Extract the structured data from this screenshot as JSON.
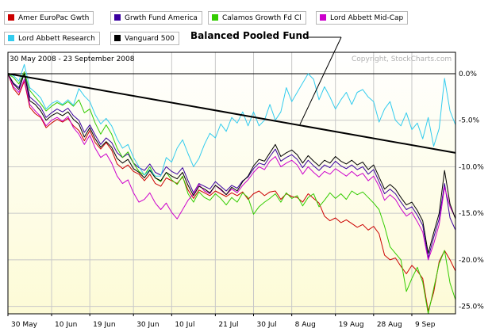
{
  "chart_data": {
    "type": "line",
    "title": "",
    "date_range": "30 May 2008 - 23 September 2008",
    "copyright": "Copyright, StockCharts.com",
    "annotation": "Balanced Pooled Fund",
    "x_tick_labels": [
      "30 May",
      "10 Jun",
      "19 Jun",
      "30 Jun",
      "10 Jul",
      "21 Jul",
      "30 Jul",
      "8 Aug",
      "19 Aug",
      "28 Aug",
      "9 Sep"
    ],
    "y_tick_labels": [
      "0.0%",
      "-5.0%",
      "-10.0%",
      "-15.0%",
      "-20.0%",
      "-25.0%"
    ],
    "y_ticks": [
      0,
      -5,
      -10,
      -15,
      -20,
      -25
    ],
    "ylim": [
      -25.8,
      2.3
    ],
    "x_count": 83,
    "grid": true,
    "legend_position": "top-left",
    "colors": {
      "background_top": "#ffffff",
      "background_bottom": "#fdfbd6",
      "grid": "#c8c8c8",
      "axis": "#000000"
    },
    "trend_line": {
      "start": [
        0,
        0
      ],
      "end": [
        82,
        -8.5
      ]
    },
    "series": [
      {
        "name": "Amer EuroPac Gwth",
        "color": "#cc0000",
        "values": [
          0,
          -1.6,
          -2.3,
          -0.8,
          -3.6,
          -4.3,
          -4.7,
          -5.8,
          -5.3,
          -4.9,
          -5.2,
          -4.8,
          -5.6,
          -6.1,
          -7.2,
          -6.1,
          -7.4,
          -8.1,
          -7.4,
          -8.2,
          -9.7,
          -10.2,
          -9.8,
          -10.5,
          -10.8,
          -11.5,
          -10.8,
          -11.8,
          -12.1,
          -11.2,
          -11.5,
          -11.8,
          -11.1,
          -12.5,
          -13.4,
          -12.5,
          -12.8,
          -13.1,
          -12.6,
          -12.9,
          -13.2,
          -12.8,
          -13.1,
          -12.7,
          -13.5,
          -12.9,
          -12.6,
          -13.1,
          -12.7,
          -12.6,
          -13.5,
          -12.9,
          -13.2,
          -13.3,
          -13.8,
          -12.9,
          -13.4,
          -13.9,
          -15.3,
          -15.8,
          -15.5,
          -16.0,
          -15.7,
          -16.1,
          -16.5,
          -16.2,
          -16.8,
          -16.4,
          -17.2,
          -19.5,
          -20.0,
          -19.8,
          -20.7,
          -21.5,
          -20.6,
          -21.2,
          -22.0,
          -25.5,
          -23.5,
          -20.2,
          -19.0,
          -20.0,
          -21.2
        ]
      },
      {
        "name": "Grwth Fund America",
        "color": "#3a00a0",
        "values": [
          0,
          -1.0,
          -1.5,
          0.2,
          -2.5,
          -3.0,
          -3.6,
          -4.7,
          -4.2,
          -3.8,
          -4.1,
          -3.7,
          -4.5,
          -5.0,
          -6.3,
          -5.5,
          -6.6,
          -7.6,
          -6.9,
          -7.4,
          -8.5,
          -9.0,
          -8.6,
          -9.6,
          -10.1,
          -10.4,
          -9.7,
          -10.6,
          -10.9,
          -10.0,
          -10.5,
          -10.8,
          -10.1,
          -11.5,
          -12.8,
          -11.8,
          -12.1,
          -12.4,
          -11.6,
          -12.1,
          -12.6,
          -12.0,
          -12.3,
          -11.5,
          -11.1,
          -10.2,
          -9.6,
          -9.8,
          -8.9,
          -8.1,
          -9.4,
          -9.0,
          -8.7,
          -9.2,
          -10.1,
          -9.3,
          -9.9,
          -10.4,
          -9.8,
          -10.1,
          -9.4,
          -9.9,
          -10.2,
          -9.8,
          -10.3,
          -10.0,
          -10.8,
          -10.3,
          -11.6,
          -12.9,
          -12.4,
          -12.9,
          -13.8,
          -14.6,
          -14.3,
          -15.2,
          -16.3,
          -19.8,
          -17.6,
          -15.6,
          -11.8,
          -15.5,
          -16.8
        ]
      },
      {
        "name": "Calamos Growth Fd Cl",
        "color": "#33cc00",
        "values": [
          0,
          -0.4,
          -1.1,
          0.2,
          -1.8,
          -2.5,
          -3.2,
          -4.0,
          -3.5,
          -3.1,
          -3.4,
          -3.0,
          -3.5,
          -2.8,
          -4.2,
          -3.8,
          -5.3,
          -6.5,
          -5.5,
          -6.5,
          -8.0,
          -9.0,
          -8.4,
          -9.6,
          -10.5,
          -10.9,
          -10.0,
          -11.2,
          -11.6,
          -10.6,
          -11.4,
          -11.9,
          -11.0,
          -12.9,
          -13.8,
          -12.7,
          -13.3,
          -13.6,
          -12.9,
          -13.4,
          -14.1,
          -13.3,
          -13.8,
          -12.8,
          -13.3,
          -15.1,
          -14.3,
          -13.8,
          -13.4,
          -12.9,
          -13.8,
          -12.8,
          -13.4,
          -13.1,
          -14.2,
          -13.3,
          -12.9,
          -14.3,
          -13.6,
          -12.8,
          -13.4,
          -12.9,
          -13.5,
          -12.6,
          -13.0,
          -12.7,
          -13.3,
          -13.9,
          -14.6,
          -16.4,
          -18.6,
          -19.3,
          -20.0,
          -23.4,
          -22.0,
          -20.8,
          -22.4,
          -25.8,
          -23.1,
          -20.4,
          -19.0,
          -22.5,
          -24.3
        ]
      },
      {
        "name": "Lord Abbett Mid-Cap",
        "color": "#cc00cc",
        "values": [
          0,
          -1.4,
          -2.0,
          -0.6,
          -3.3,
          -4.0,
          -4.6,
          -5.6,
          -5.0,
          -4.7,
          -5.1,
          -4.6,
          -5.8,
          -6.5,
          -7.6,
          -6.6,
          -8.0,
          -9.0,
          -8.6,
          -9.6,
          -11.0,
          -11.8,
          -11.4,
          -12.8,
          -13.8,
          -13.5,
          -12.8,
          -13.9,
          -14.6,
          -13.9,
          -14.9,
          -15.6,
          -14.6,
          -13.6,
          -12.9,
          -11.9,
          -12.6,
          -12.9,
          -12.0,
          -12.5,
          -13.0,
          -12.4,
          -12.8,
          -12.0,
          -11.4,
          -10.6,
          -10.0,
          -10.3,
          -9.4,
          -8.9,
          -10.0,
          -9.6,
          -9.3,
          -9.8,
          -10.8,
          -10.0,
          -10.6,
          -11.1,
          -10.5,
          -10.8,
          -10.2,
          -10.6,
          -11.0,
          -10.5,
          -11.0,
          -10.7,
          -11.5,
          -11.0,
          -12.1,
          -13.6,
          -13.0,
          -13.5,
          -14.5,
          -15.3,
          -14.9,
          -15.9,
          -17.0,
          -20.0,
          -18.3,
          -16.2,
          -12.2,
          -14.3,
          -15.5
        ]
      },
      {
        "name": "Lord Abbett Research",
        "color": "#33ccee",
        "values": [
          0,
          -0.2,
          -0.8,
          1.0,
          -1.5,
          -2.0,
          -2.6,
          -3.8,
          -3.2,
          -2.9,
          -3.3,
          -2.8,
          -3.4,
          -1.6,
          -2.4,
          -3.0,
          -4.4,
          -5.4,
          -4.8,
          -5.6,
          -7.0,
          -8.0,
          -7.6,
          -9.0,
          -10.0,
          -10.9,
          -10.3,
          -11.0,
          -11.0,
          -9.0,
          -9.5,
          -8.0,
          -7.1,
          -8.6,
          -10.0,
          -9.1,
          -7.6,
          -6.4,
          -6.9,
          -5.4,
          -6.2,
          -4.7,
          -5.3,
          -4.1,
          -5.6,
          -4.1,
          -5.6,
          -5.0,
          -3.3,
          -5.0,
          -4.1,
          -1.5,
          -3.0,
          -2.0,
          -1.0,
          0.0,
          -0.6,
          -2.8,
          -1.4,
          -2.5,
          -3.8,
          -2.8,
          -2.0,
          -3.3,
          -2.0,
          -1.7,
          -2.5,
          -3.0,
          -5.2,
          -3.8,
          -3.0,
          -5.0,
          -5.6,
          -4.2,
          -6.0,
          -5.3,
          -7.0,
          -4.7,
          -7.8,
          -5.9,
          -0.5,
          -4.0,
          -5.5
        ]
      },
      {
        "name": "Vanguard 500",
        "color": "#000000",
        "values": [
          0,
          -1.1,
          -1.7,
          0.0,
          -2.9,
          -3.3,
          -4.0,
          -5.0,
          -4.5,
          -4.2,
          -4.5,
          -4.1,
          -4.9,
          -5.4,
          -6.8,
          -5.8,
          -7.0,
          -7.9,
          -7.3,
          -7.9,
          -9.1,
          -9.6,
          -9.2,
          -10.2,
          -10.6,
          -11.2,
          -10.4,
          -11.2,
          -11.5,
          -10.6,
          -11.0,
          -11.3,
          -10.6,
          -12.0,
          -13.1,
          -12.1,
          -12.4,
          -12.8,
          -12.0,
          -12.4,
          -13.0,
          -12.2,
          -12.6,
          -11.6,
          -11.0,
          -9.9,
          -9.2,
          -9.4,
          -8.5,
          -7.6,
          -8.9,
          -8.5,
          -8.2,
          -8.7,
          -9.6,
          -8.8,
          -9.4,
          -9.9,
          -9.3,
          -9.6,
          -8.9,
          -9.4,
          -9.7,
          -9.3,
          -9.8,
          -9.5,
          -10.3,
          -9.8,
          -11.1,
          -12.4,
          -11.9,
          -12.4,
          -13.3,
          -14.1,
          -13.8,
          -14.7,
          -15.8,
          -19.3,
          -17.1,
          -15.0,
          -10.4,
          -14.0,
          -15.6
        ]
      }
    ]
  }
}
